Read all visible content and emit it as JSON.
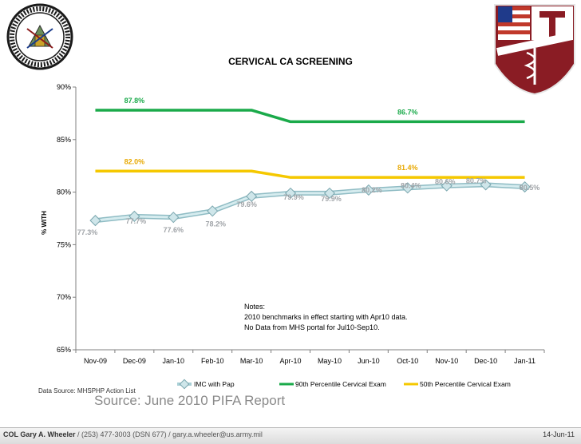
{
  "chart_data": {
    "type": "line",
    "title": "CERVICAL CA SCREENING",
    "ylabel": "% WITH",
    "xlabel": "",
    "ylim": [
      65,
      90
    ],
    "ytick_labels": [
      "65%",
      "70%",
      "75%",
      "80%",
      "85%",
      "90%"
    ],
    "yticks": [
      65,
      70,
      75,
      80,
      85,
      90
    ],
    "categories": [
      "Nov-09",
      "Dec-09",
      "Jan-10",
      "Feb-10",
      "Mar-10",
      "Apr-10",
      "May-10",
      "Jun-10",
      "Oct-10",
      "Nov-10",
      "Dec-10",
      "Jan-11"
    ],
    "series": [
      {
        "name": "IMC with Pap",
        "color": "#a9d0d6",
        "values": [
          77.3,
          77.7,
          77.6,
          78.2,
          79.6,
          79.9,
          79.9,
          80.2,
          80.4,
          80.6,
          80.7,
          80.5
        ],
        "labels": [
          "77.3%",
          "77.7%",
          "77.6%",
          "78.2%",
          "79.6%",
          "79.9%",
          "79.9%",
          "80.2%",
          "80.4%",
          "80.6%",
          "80.7%",
          "80.5%"
        ]
      },
      {
        "name": "90th Percentile Cervical Exam",
        "color": "#1aaa4a",
        "values": [
          87.8,
          87.8,
          87.8,
          87.8,
          87.8,
          86.7,
          86.7,
          86.7,
          86.7,
          86.7,
          86.7,
          86.7
        ],
        "labels": [
          "87.8%",
          "86.7%"
        ]
      },
      {
        "name": "50th Percentile Cervical Exam",
        "color": "#f5c800",
        "values": [
          82.0,
          82.0,
          82.0,
          82.0,
          82.0,
          81.4,
          81.4,
          81.4,
          81.4,
          81.4,
          81.4,
          81.4
        ],
        "labels": [
          "82.0%",
          "81.4%"
        ]
      }
    ],
    "legend_position": "bottom",
    "grid": false,
    "annotations": [
      "Notes:",
      "2010 benchmarks in effect starting with Apr10 data.",
      "No Data from MHS portal for Jul10-Sep10."
    ]
  },
  "data_source": "Data Source: MHSPHP Action List",
  "source_note": "Source: June 2010 PIFA Report",
  "footer": {
    "name": "COL Gary A. Wheeler",
    "contact": " / (253) 477-3003 (DSN 677) / gary.a.wheeler@us.army.mil",
    "date": "14-Jun-11"
  }
}
